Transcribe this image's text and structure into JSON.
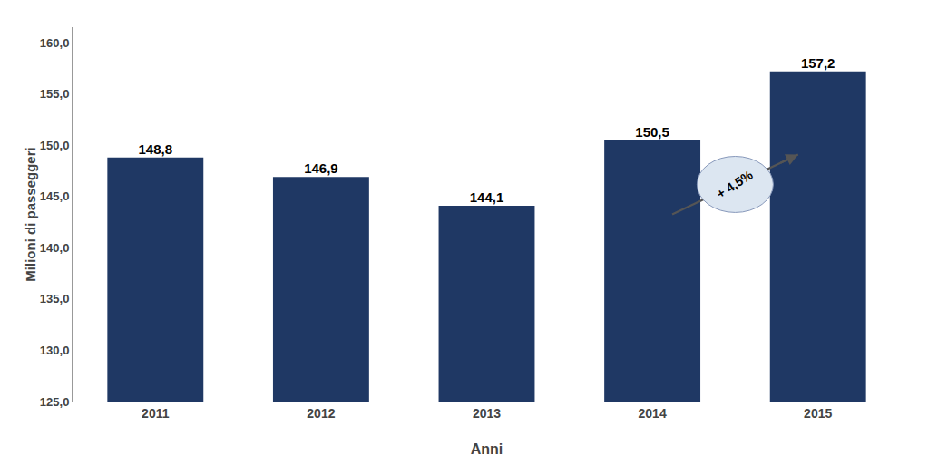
{
  "chart_data": {
    "type": "bar",
    "categories": [
      "2011",
      "2012",
      "2013",
      "2014",
      "2015"
    ],
    "values": [
      148.8,
      146.9,
      144.1,
      150.5,
      157.2
    ],
    "value_labels": [
      "148,8",
      "146,9",
      "144,1",
      "150,5",
      "157,2"
    ],
    "data_labels": true,
    "color": "#1F3864",
    "xlabel": "Anni",
    "ylabel": "Milioni di passeggeri",
    "ylim": [
      125.0,
      161.5
    ],
    "yticks": [
      {
        "value": 125.0,
        "label": "125,0"
      },
      {
        "value": 130.0,
        "label": "130,0"
      },
      {
        "value": 135.0,
        "label": "135,0"
      },
      {
        "value": 140.0,
        "label": "140,0"
      },
      {
        "value": 145.0,
        "label": "145,0"
      },
      {
        "value": 150.0,
        "label": "150,0"
      },
      {
        "value": 155.0,
        "label": "155,0"
      },
      {
        "value": 160.0,
        "label": "160,0"
      }
    ],
    "grid": false,
    "annotations": [
      "+ 4,5%"
    ]
  }
}
